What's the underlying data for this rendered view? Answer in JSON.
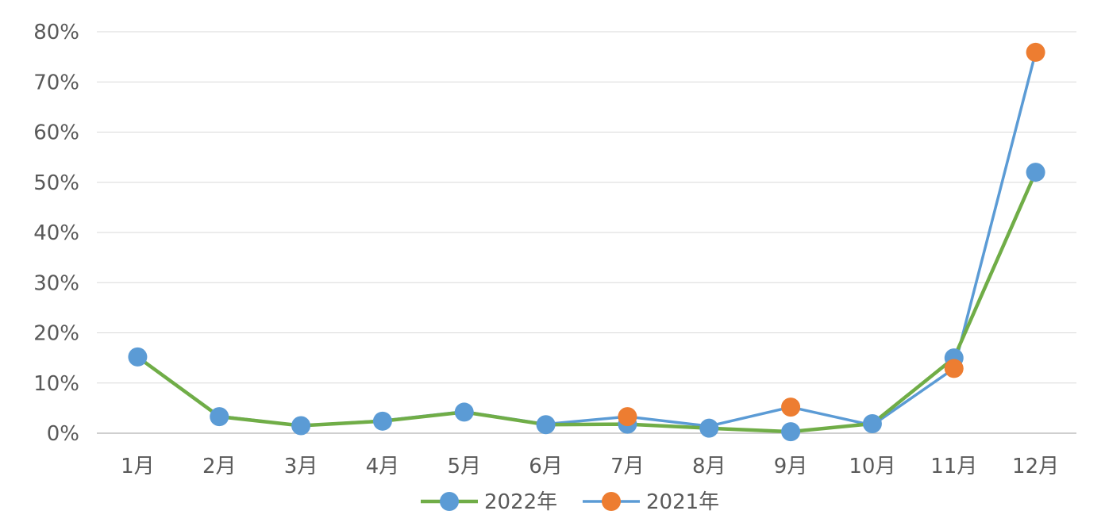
{
  "chart_data": {
    "type": "line",
    "categories": [
      "1月",
      "2月",
      "3月",
      "4月",
      "5月",
      "6月",
      "7月",
      "8月",
      "9月",
      "10月",
      "11月",
      "12月"
    ],
    "series": [
      {
        "name": "2022年",
        "values": [
          15.2,
          3.3,
          1.5,
          2.4,
          4.2,
          1.7,
          1.8,
          1.0,
          0.3,
          1.9,
          15.0,
          52.0
        ],
        "line_color": "#70AD47",
        "marker_color": "#5B9BD5"
      },
      {
        "name": "2021年",
        "values": [
          15.2,
          3.4,
          1.5,
          2.5,
          4.3,
          1.8,
          3.3,
          1.4,
          5.2,
          1.6,
          12.9,
          75.9
        ],
        "line_color": "#5B9BD5",
        "marker_color": "#ED7D31"
      }
    ],
    "y_ticks": [
      "0%",
      "10%",
      "20%",
      "30%",
      "40%",
      "50%",
      "60%",
      "70%",
      "80%"
    ],
    "ylim": [
      0,
      80
    ],
    "grid": true,
    "legend_position": "bottom-center",
    "title": "",
    "xlabel": "",
    "ylabel": ""
  }
}
